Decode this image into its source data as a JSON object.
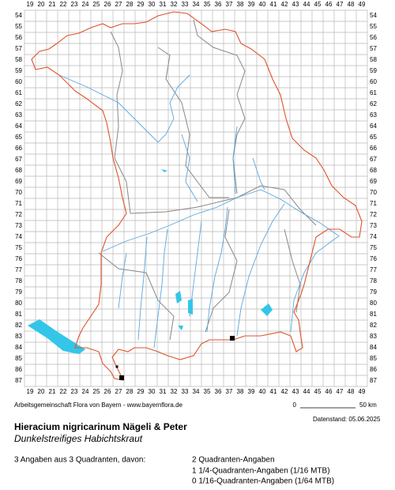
{
  "map": {
    "columns": [
      19,
      20,
      21,
      22,
      23,
      24,
      25,
      26,
      27,
      28,
      29,
      30,
      31,
      32,
      33,
      34,
      35,
      36,
      37,
      38,
      39,
      40,
      41,
      42,
      43,
      44,
      45,
      46,
      47,
      48,
      49
    ],
    "rows": [
      54,
      55,
      56,
      57,
      58,
      59,
      60,
      61,
      62,
      63,
      64,
      65,
      66,
      67,
      68,
      69,
      70,
      71,
      72,
      73,
      74,
      75,
      76,
      77,
      78,
      79,
      80,
      81,
      82,
      83,
      84,
      85,
      86,
      87
    ],
    "quadrant_points": [
      {
        "col": 37.29,
        "row": 83.14
      },
      {
        "col": 27.29,
        "row": 86.71
      }
    ],
    "quarter_quadrant_points": [
      {
        "col": 26.86,
        "row": 85.71
      }
    ]
  },
  "footer": {
    "credit": "Arbeitsgemeinschaft Flora von Bayern - www.bayernflora.de",
    "scale_start": "0",
    "scale_end": "50 km",
    "date": "Datenstand: 05.06.2025"
  },
  "species": {
    "name": "Hieracium nigricarinum Nägeli & Peter",
    "common_name": "Dunkelstreifiges Habichtskraut"
  },
  "summary": {
    "total": "3 Angaben aus 3 Quadranten, davon:",
    "details": [
      "2 Quadranten-Angaben",
      "1 1/4-Quadranten-Angaben (1/16 MTB)",
      "0 1/16-Quadranten-Angaben (1/64 MTB)"
    ]
  }
}
